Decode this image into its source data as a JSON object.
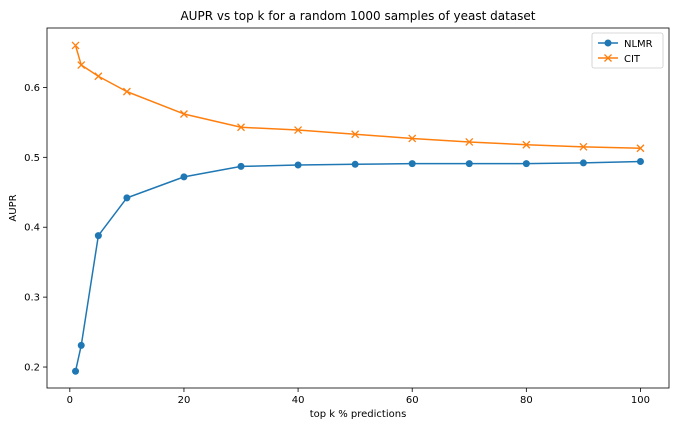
{
  "chart_data": {
    "type": "line",
    "title": "AUPR vs top k for a random 1000 samples of yeast dataset",
    "xlabel": "top k % predictions",
    "ylabel": "AUPR",
    "xlim": [
      -4,
      105
    ],
    "ylim": [
      0.17,
      0.685
    ],
    "xticks": [
      0,
      20,
      40,
      60,
      80,
      100
    ],
    "yticks": [
      0.2,
      0.3,
      0.4,
      0.5,
      0.6
    ],
    "ytick_labels": [
      "0.2",
      "0.3",
      "0.4",
      "0.5",
      "0.6"
    ],
    "grid": false,
    "legend": "top-right",
    "x": [
      1,
      2,
      5,
      10,
      20,
      30,
      40,
      50,
      60,
      70,
      80,
      90,
      100
    ],
    "series": [
      {
        "name": "NLMR",
        "color": "#1f77b4",
        "marker": "circle",
        "values": [
          0.194,
          0.231,
          0.388,
          0.442,
          0.472,
          0.487,
          0.489,
          0.49,
          0.491,
          0.491,
          0.491,
          0.492,
          0.494
        ]
      },
      {
        "name": "CIT",
        "color": "#ff7f0e",
        "marker": "x",
        "values": [
          0.66,
          0.632,
          0.616,
          0.594,
          0.562,
          0.543,
          0.539,
          0.533,
          0.527,
          0.522,
          0.518,
          0.515,
          0.513
        ]
      }
    ]
  }
}
